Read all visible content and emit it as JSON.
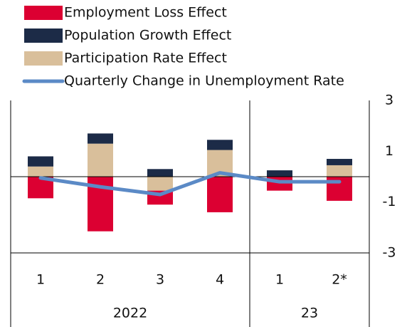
{
  "chart_data": {
    "type": "bar",
    "categories": [
      "1",
      "2",
      "3",
      "4",
      "1",
      "2*"
    ],
    "groups": [
      {
        "name": "2022",
        "count": 4
      },
      {
        "name": "23",
        "count": 2
      }
    ],
    "series": [
      {
        "name": "Employment Loss Effect",
        "color": "#dc0032",
        "values": [
          -0.85,
          -2.15,
          -0.55,
          -1.4,
          -0.55,
          -0.95
        ]
      },
      {
        "name": "Population Growth Effect",
        "color": "#1c2b47",
        "values": [
          0.4,
          0.4,
          0.3,
          0.4,
          0.25,
          0.25
        ]
      },
      {
        "name": "Participation Rate Effect",
        "color": "#d9bf9b",
        "values": [
          0.4,
          1.3,
          -0.55,
          1.05,
          0,
          0.45
        ]
      },
      {
        "name": "Quarterly Change in Unemployment Rate",
        "type": "line",
        "color": "#5b8ac6",
        "values": [
          -0.05,
          -0.4,
          -0.7,
          0.15,
          -0.2,
          -0.2
        ]
      }
    ],
    "ylim": [
      -3,
      3
    ],
    "yticks": [
      3,
      1,
      -1,
      -3
    ]
  }
}
